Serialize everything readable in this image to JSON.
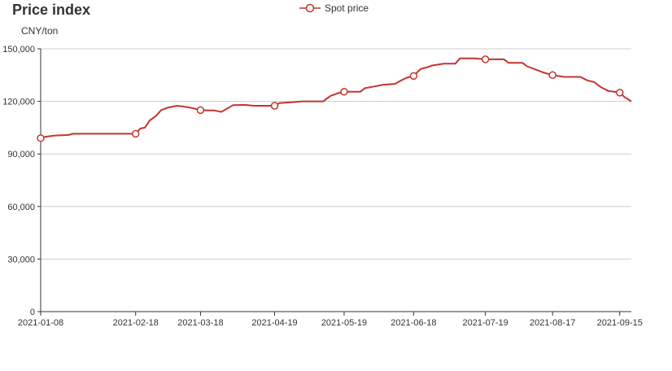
{
  "chart_data": {
    "type": "line",
    "title": "Price index",
    "ylabel": "CNY/ton",
    "legend": "top-center",
    "grid": true,
    "ylim": [
      0,
      150000
    ],
    "yticks": [
      "0",
      "30,000",
      "60,000",
      "90,000",
      "120,000",
      "150,000"
    ],
    "xticks": [
      "2021-01-08",
      "2021-02-18",
      "2021-03-18",
      "2021-04-19",
      "2021-05-19",
      "2021-06-18",
      "2021-07-19",
      "2021-08-17",
      "2021-09-15"
    ],
    "colors": {
      "series": "#c23531",
      "grid": "#cccccc",
      "axis": "#333333"
    },
    "series": [
      {
        "name": "Spot price",
        "marker_dates": [
          "2021-01-08",
          "2021-02-18",
          "2021-03-18",
          "2021-04-19",
          "2021-05-19",
          "2021-06-18",
          "2021-07-19",
          "2021-08-17",
          "2021-09-15"
        ],
        "points": [
          [
            "2021-01-08",
            99000
          ],
          [
            "2021-01-10",
            99800
          ],
          [
            "2021-01-14",
            100500
          ],
          [
            "2021-01-20",
            100800
          ],
          [
            "2021-01-22",
            101500
          ],
          [
            "2021-01-29",
            101500
          ],
          [
            "2021-02-05",
            101500
          ],
          [
            "2021-02-18",
            101500
          ],
          [
            "2021-02-20",
            104500
          ],
          [
            "2021-02-22",
            105000
          ],
          [
            "2021-02-24",
            109000
          ],
          [
            "2021-02-27",
            112000
          ],
          [
            "2021-03-01",
            115000
          ],
          [
            "2021-03-04",
            116500
          ],
          [
            "2021-03-08",
            117500
          ],
          [
            "2021-03-12",
            116800
          ],
          [
            "2021-03-15",
            116000
          ],
          [
            "2021-03-18",
            115000
          ],
          [
            "2021-03-24",
            114800
          ],
          [
            "2021-03-27",
            114000
          ],
          [
            "2021-03-29",
            115500
          ],
          [
            "2021-04-01",
            117800
          ],
          [
            "2021-04-06",
            118000
          ],
          [
            "2021-04-10",
            117500
          ],
          [
            "2021-04-16",
            117500
          ],
          [
            "2021-04-19",
            117500
          ],
          [
            "2021-04-21",
            119000
          ],
          [
            "2021-04-26",
            119500
          ],
          [
            "2021-05-01",
            120000
          ],
          [
            "2021-05-10",
            120000
          ],
          [
            "2021-05-13",
            123000
          ],
          [
            "2021-05-16",
            124500
          ],
          [
            "2021-05-19",
            125500
          ],
          [
            "2021-05-26",
            125500
          ],
          [
            "2021-05-28",
            127500
          ],
          [
            "2021-06-01",
            128500
          ],
          [
            "2021-06-05",
            129500
          ],
          [
            "2021-06-10",
            130000
          ],
          [
            "2021-06-12",
            131500
          ],
          [
            "2021-06-15",
            133500
          ],
          [
            "2021-06-18",
            134500
          ],
          [
            "2021-06-21",
            138500
          ],
          [
            "2021-06-24",
            139500
          ],
          [
            "2021-06-26",
            140500
          ],
          [
            "2021-07-01",
            141500
          ],
          [
            "2021-07-06",
            141500
          ],
          [
            "2021-07-08",
            144500
          ],
          [
            "2021-07-14",
            144500
          ],
          [
            "2021-07-19",
            144000
          ],
          [
            "2021-07-27",
            144000
          ],
          [
            "2021-07-29",
            142000
          ],
          [
            "2021-08-04",
            142000
          ],
          [
            "2021-08-06",
            140000
          ],
          [
            "2021-08-10",
            138000
          ],
          [
            "2021-08-13",
            136500
          ],
          [
            "2021-08-17",
            135000
          ],
          [
            "2021-08-22",
            134000
          ],
          [
            "2021-08-29",
            134000
          ],
          [
            "2021-09-01",
            132000
          ],
          [
            "2021-09-04",
            131000
          ],
          [
            "2021-09-07",
            128000
          ],
          [
            "2021-09-10",
            126000
          ],
          [
            "2021-09-15",
            125000
          ],
          [
            "2021-09-17",
            122500
          ],
          [
            "2021-09-20",
            120000
          ]
        ]
      }
    ]
  }
}
